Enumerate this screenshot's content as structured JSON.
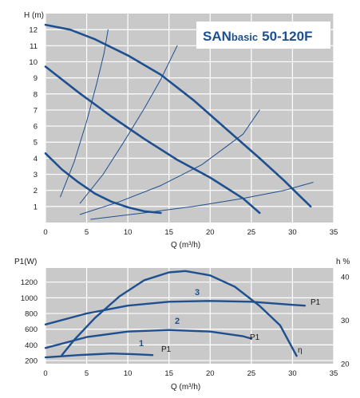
{
  "title": {
    "brand": "SAN",
    "brand_sub": "basic",
    "model": "50-120F"
  },
  "chart_data": [
    {
      "type": "line",
      "xlabel": "Q (m³/h)",
      "ylabel": "H (m)",
      "xlim": [
        0,
        35
      ],
      "ylim": [
        0,
        13
      ],
      "xticks": [
        0,
        5,
        10,
        15,
        20,
        25,
        30,
        35
      ],
      "yticks": [
        1,
        2,
        3,
        4,
        5,
        6,
        7,
        8,
        9,
        10,
        11,
        12
      ],
      "grid": true,
      "series": [
        {
          "width": 2.6,
          "points": [
            [
              0,
              12.3
            ],
            [
              3,
              12.0
            ],
            [
              6,
              11.4
            ],
            [
              10,
              10.4
            ],
            [
              14,
              9.2
            ],
            [
              18,
              7.6
            ],
            [
              22,
              5.8
            ],
            [
              26,
              4.0
            ],
            [
              29,
              2.6
            ],
            [
              31,
              1.6
            ],
            [
              32.2,
              1.0
            ]
          ]
        },
        {
          "width": 2.6,
          "points": [
            [
              0,
              9.7
            ],
            [
              4,
              8.1
            ],
            [
              8,
              6.6
            ],
            [
              12,
              5.2
            ],
            [
              16,
              3.9
            ],
            [
              20,
              2.8
            ],
            [
              24,
              1.5
            ],
            [
              26,
              0.6
            ]
          ]
        },
        {
          "width": 2.6,
          "points": [
            [
              0,
              4.3
            ],
            [
              2,
              3.3
            ],
            [
              4,
              2.5
            ],
            [
              6,
              1.8
            ],
            [
              8,
              1.3
            ],
            [
              10,
              0.95
            ],
            [
              12,
              0.7
            ],
            [
              14,
              0.6
            ]
          ]
        },
        {
          "width": 1,
          "points": [
            [
              1.8,
              1.6
            ],
            [
              3.5,
              3.8
            ],
            [
              5,
              6.3
            ],
            [
              6.2,
              8.6
            ],
            [
              7.1,
              10.5
            ],
            [
              7.6,
              12.0
            ]
          ]
        },
        {
          "width": 1,
          "points": [
            [
              4.2,
              1.2
            ],
            [
              7,
              3.0
            ],
            [
              9.5,
              5.0
            ],
            [
              12,
              7.1
            ],
            [
              14,
              8.9
            ],
            [
              16,
              11.0
            ]
          ]
        },
        {
          "width": 1,
          "points": [
            [
              4.2,
              0.5
            ],
            [
              9,
              1.3
            ],
            [
              14,
              2.3
            ],
            [
              19,
              3.6
            ],
            [
              24,
              5.5
            ],
            [
              26,
              7.0
            ]
          ]
        },
        {
          "width": 1,
          "points": [
            [
              5.5,
              0.2
            ],
            [
              12,
              0.6
            ],
            [
              18,
              1.0
            ],
            [
              24,
              1.5
            ],
            [
              29,
              2.0
            ],
            [
              32.5,
              2.5
            ]
          ]
        }
      ]
    },
    {
      "type": "line",
      "xlabel": "Q (m³/h)",
      "ylabel": "P1(W)",
      "y2label": "h %",
      "xlim": [
        0,
        35
      ],
      "ylim": [
        160,
        1380
      ],
      "y2lim": [
        20,
        42
      ],
      "xticks": [
        0,
        5,
        10,
        15,
        20,
        25,
        30,
        35
      ],
      "yticks": [
        200,
        400,
        600,
        800,
        1000,
        1200
      ],
      "y2ticks": [
        20,
        30,
        40
      ],
      "grid": true,
      "series": [
        {
          "name": "P1",
          "label": "1",
          "points": [
            [
              0,
              240
            ],
            [
              4,
              270
            ],
            [
              8,
              290
            ],
            [
              11,
              280
            ],
            [
              13,
              270
            ]
          ]
        },
        {
          "name": "P1",
          "label": "2",
          "points": [
            [
              0,
              360
            ],
            [
              5,
              500
            ],
            [
              10,
              570
            ],
            [
              15,
              590
            ],
            [
              20,
              570
            ],
            [
              24,
              510
            ],
            [
              25,
              480
            ]
          ]
        },
        {
          "name": "P1",
          "label": "3",
          "points": [
            [
              0,
              660
            ],
            [
              5,
              800
            ],
            [
              10,
              900
            ],
            [
              15,
              950
            ],
            [
              20,
              960
            ],
            [
              25,
              950
            ],
            [
              30,
              910
            ],
            [
              31.5,
              900
            ]
          ]
        },
        {
          "name": "η",
          "points": [
            [
              2,
              22
            ],
            [
              3.5,
              25.5
            ],
            [
              6,
              30.5
            ],
            [
              9,
              35.5
            ],
            [
              12,
              39.2
            ],
            [
              15,
              41.0
            ],
            [
              17,
              41.3
            ],
            [
              20,
              40.3
            ],
            [
              23,
              37.7
            ],
            [
              26,
              33.3
            ],
            [
              28.5,
              28.8
            ],
            [
              30.5,
              21.8
            ]
          ]
        }
      ],
      "annotations": {
        "label_1": "1",
        "label_2": "2",
        "label_3": "3",
        "p1_a": "P1",
        "p1_b": "P1",
        "p1_c": "P1",
        "eta": "η"
      }
    }
  ]
}
